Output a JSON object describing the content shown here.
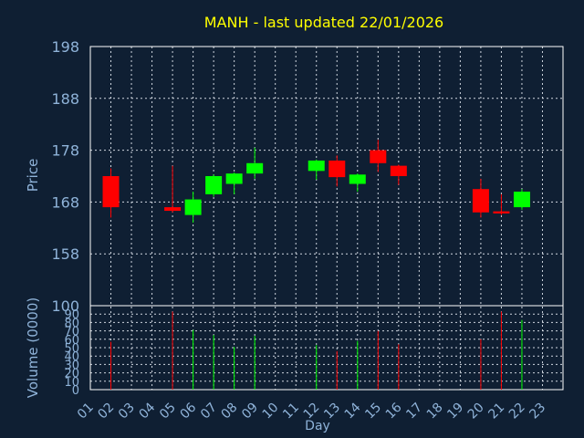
{
  "chart_data": {
    "type": "candlestick",
    "title": "MANH - last updated 22/01/2026",
    "xlabel": "Day",
    "ylabel": "Price",
    "volume_ylabel": "Volume (0000)",
    "x_ticks": [
      "01",
      "02",
      "03",
      "04",
      "05",
      "06",
      "07",
      "08",
      "09",
      "10",
      "11",
      "12",
      "13",
      "14",
      "15",
      "16",
      "17",
      "18",
      "19",
      "20",
      "21",
      "22",
      "23"
    ],
    "price_ticks": [
      "198",
      "188",
      "178",
      "168",
      "158"
    ],
    "price_ylim": [
      148,
      198
    ],
    "volume_ticks": [
      "100",
      "90",
      "80",
      "70",
      "60",
      "50",
      "40",
      "30",
      "20",
      "10",
      "0"
    ],
    "volume_ylim": [
      0,
      100
    ],
    "grid": true,
    "colors": {
      "background": "#0f1f33",
      "plot_border": "#ffffff",
      "grid": "#cfd6df",
      "title": "#ffff00",
      "axis_text": "#8fb3d9",
      "up": "#00ff00",
      "down": "#ff0000"
    },
    "candles": [
      {
        "day": 2,
        "open": 173.0,
        "close": 167.0,
        "high": 174.5,
        "low": 165.0,
        "volume": 57
      },
      {
        "day": 5,
        "open": 167.0,
        "close": 166.3,
        "high": 175.0,
        "low": 166.0,
        "volume": 93
      },
      {
        "day": 6,
        "open": 165.5,
        "close": 168.5,
        "high": 170.0,
        "low": 164.0,
        "volume": 71
      },
      {
        "day": 7,
        "open": 169.5,
        "close": 173.0,
        "high": 173.3,
        "low": 169.0,
        "volume": 65
      },
      {
        "day": 8,
        "open": 171.5,
        "close": 173.5,
        "high": 173.7,
        "low": 169.5,
        "volume": 51
      },
      {
        "day": 9,
        "open": 173.5,
        "close": 175.5,
        "high": 178.5,
        "low": 172.5,
        "volume": 64
      },
      {
        "day": 12,
        "open": 174.0,
        "close": 176.0,
        "high": 176.2,
        "low": 172.3,
        "volume": 53
      },
      {
        "day": 13,
        "open": 176.0,
        "close": 172.8,
        "high": 177.0,
        "low": 171.0,
        "volume": 46
      },
      {
        "day": 14,
        "open": 171.5,
        "close": 173.3,
        "high": 173.5,
        "low": 170.0,
        "volume": 58
      },
      {
        "day": 15,
        "open": 178.0,
        "close": 175.5,
        "high": 180.0,
        "low": 173.8,
        "volume": 70
      },
      {
        "day": 16,
        "open": 175.0,
        "close": 173.0,
        "high": 175.2,
        "low": 171.3,
        "volume": 54
      },
      {
        "day": 20,
        "open": 170.5,
        "close": 166.0,
        "high": 172.5,
        "low": 165.0,
        "volume": 60
      },
      {
        "day": 21,
        "open": 166.2,
        "close": 165.8,
        "high": 169.5,
        "low": 165.5,
        "volume": 93
      },
      {
        "day": 22,
        "open": 167.0,
        "close": 170.0,
        "high": 170.5,
        "low": 166.5,
        "volume": 83
      }
    ]
  }
}
